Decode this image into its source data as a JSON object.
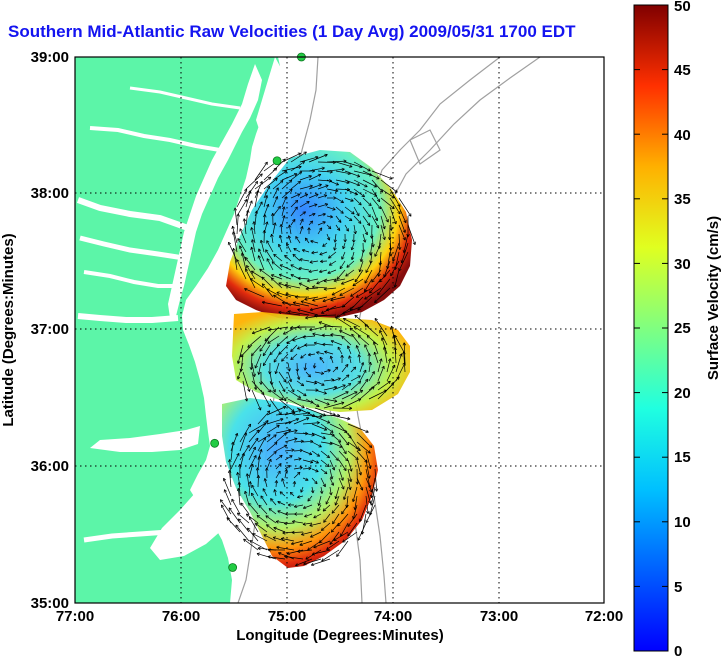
{
  "title": "Southern Mid-Atlantic Raw Velocities (1 Day Avg) 2009/05/31 1700 EDT",
  "map": {
    "xlabel": "Longitude (Degrees:Minutes)",
    "ylabel": "Latitude (Degrees:Minutes)",
    "lon_range": [
      -77,
      -72
    ],
    "lat_range": [
      35,
      39
    ],
    "x_ticks": [
      "77:00",
      "76:00",
      "75:00",
      "74:00",
      "73:00",
      "72:00"
    ],
    "y_ticks": [
      "35:00",
      "36:00",
      "37:00",
      "38:00",
      "39:00"
    ],
    "grid": "dotted",
    "land_color": "#5cf5a8",
    "ocean_color": "#ffffff",
    "bathymetry_color": "#a0a0a0",
    "station_color": "#22cc44",
    "vector_color": "#000000"
  },
  "colorbar": {
    "label": "Surface Velocity (cm/s)",
    "ticks": [
      "0",
      "5",
      "10",
      "15",
      "20",
      "25",
      "30",
      "35",
      "40",
      "45",
      "50"
    ],
    "range": [
      0,
      50
    ],
    "colormap": "jet"
  },
  "stations": [
    {
      "lon": -74.86,
      "lat": 39.0
    },
    {
      "lon": -75.09,
      "lat": 38.24
    },
    {
      "lon": -75.68,
      "lat": 36.17
    },
    {
      "lon": -75.51,
      "lat": 35.26
    }
  ]
}
